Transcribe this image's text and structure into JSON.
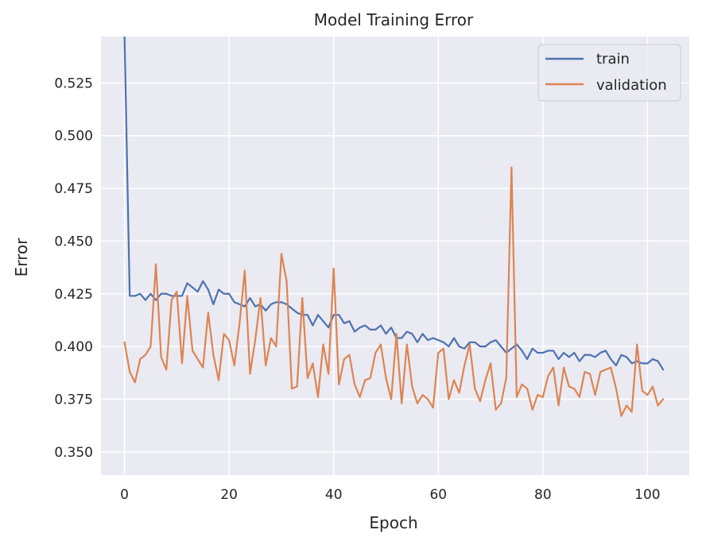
{
  "chart_data": {
    "type": "line",
    "title": "Model Training Error",
    "xlabel": "Epoch",
    "ylabel": "Error",
    "xlim": [
      -4.5,
      108
    ],
    "ylim": [
      0.339,
      0.547
    ],
    "x_ticks": [
      0,
      20,
      40,
      60,
      80,
      100
    ],
    "y_ticks": [
      0.35,
      0.375,
      0.4,
      0.425,
      0.45,
      0.475,
      0.5,
      0.525
    ],
    "y_tick_labels": [
      "0.350",
      "0.375",
      "0.400",
      "0.425",
      "0.450",
      "0.475",
      "0.500",
      "0.525"
    ],
    "grid": true,
    "legend_position": "top-right",
    "series": [
      {
        "name": "train",
        "color": "#4C72B0",
        "values": [
          0.548,
          0.424,
          0.424,
          0.425,
          0.422,
          0.425,
          0.422,
          0.425,
          0.425,
          0.424,
          0.424,
          0.424,
          0.43,
          0.428,
          0.426,
          0.431,
          0.427,
          0.42,
          0.427,
          0.425,
          0.425,
          0.421,
          0.42,
          0.419,
          0.423,
          0.419,
          0.42,
          0.417,
          0.42,
          0.421,
          0.421,
          0.42,
          0.418,
          0.416,
          0.415,
          0.415,
          0.41,
          0.415,
          0.412,
          0.409,
          0.415,
          0.415,
          0.411,
          0.412,
          0.407,
          0.409,
          0.41,
          0.408,
          0.408,
          0.41,
          0.406,
          0.409,
          0.404,
          0.404,
          0.407,
          0.406,
          0.402,
          0.406,
          0.403,
          0.404,
          0.403,
          0.402,
          0.4,
          0.404,
          0.4,
          0.399,
          0.402,
          0.402,
          0.4,
          0.4,
          0.402,
          0.403,
          0.4,
          0.397,
          0.399,
          0.401,
          0.398,
          0.394,
          0.399,
          0.397,
          0.397,
          0.398,
          0.398,
          0.394,
          0.397,
          0.395,
          0.397,
          0.393,
          0.396,
          0.396,
          0.395,
          0.397,
          0.398,
          0.394,
          0.391,
          0.396,
          0.395,
          0.392,
          0.393,
          0.392,
          0.392,
          0.394,
          0.393,
          0.389
        ]
      },
      {
        "name": "validation",
        "color": "#DD8452",
        "values": [
          0.402,
          0.388,
          0.383,
          0.394,
          0.396,
          0.4,
          0.439,
          0.395,
          0.389,
          0.422,
          0.426,
          0.392,
          0.424,
          0.398,
          0.394,
          0.39,
          0.416,
          0.396,
          0.384,
          0.406,
          0.403,
          0.391,
          0.411,
          0.436,
          0.387,
          0.403,
          0.423,
          0.391,
          0.404,
          0.4,
          0.444,
          0.431,
          0.38,
          0.381,
          0.423,
          0.385,
          0.392,
          0.376,
          0.401,
          0.387,
          0.437,
          0.382,
          0.394,
          0.396,
          0.382,
          0.376,
          0.384,
          0.385,
          0.397,
          0.401,
          0.385,
          0.375,
          0.406,
          0.373,
          0.401,
          0.381,
          0.373,
          0.377,
          0.375,
          0.371,
          0.397,
          0.399,
          0.375,
          0.384,
          0.378,
          0.391,
          0.401,
          0.38,
          0.374,
          0.384,
          0.392,
          0.37,
          0.373,
          0.385,
          0.485,
          0.376,
          0.382,
          0.38,
          0.37,
          0.377,
          0.376,
          0.386,
          0.39,
          0.372,
          0.39,
          0.381,
          0.38,
          0.376,
          0.388,
          0.387,
          0.377,
          0.388,
          0.389,
          0.39,
          0.38,
          0.367,
          0.372,
          0.369,
          0.401,
          0.379,
          0.377,
          0.381,
          0.372,
          0.375
        ]
      }
    ]
  }
}
